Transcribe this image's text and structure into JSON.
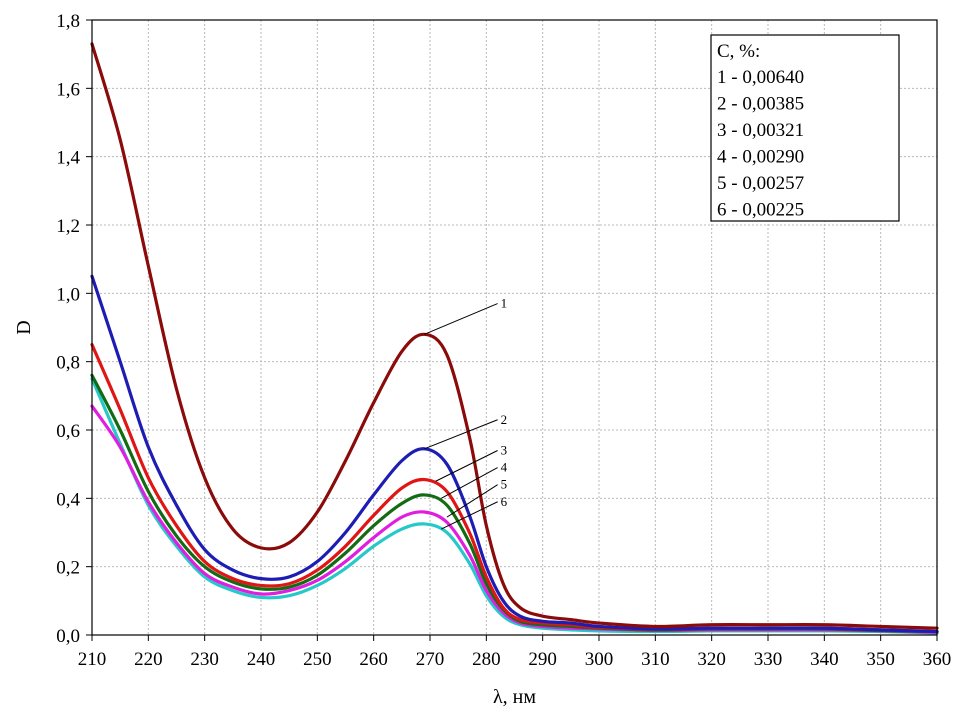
{
  "chart_data": {
    "type": "line",
    "title": "",
    "xlabel": "λ, нм",
    "ylabel": "D",
    "xlim": [
      210,
      360
    ],
    "ylim": [
      0,
      1.8
    ],
    "xticks": [
      210,
      220,
      230,
      240,
      250,
      260,
      270,
      280,
      290,
      300,
      310,
      320,
      330,
      340,
      350,
      360
    ],
    "xtick_labels": [
      "210",
      "220",
      "230",
      "240",
      "250",
      "260",
      "270",
      "280",
      "290",
      "300",
      "310",
      "320",
      "330",
      "340",
      "350",
      "360"
    ],
    "yticks": [
      0,
      0.2,
      0.4,
      0.6,
      0.8,
      1.0,
      1.2,
      1.4,
      1.6,
      1.8
    ],
    "ytick_labels": [
      "0,0",
      "0,2",
      "0,4",
      "0,6",
      "0,8",
      "1,0",
      "1,2",
      "1,4",
      "1,6",
      "1,8"
    ],
    "grid": true,
    "legend": {
      "position": "top-right",
      "title": "C, %:",
      "entries": [
        "1 - 0,00640",
        "2 - 0,00385",
        "3 - 0,00321",
        "4 - 0,00290",
        "5 - 0,00257",
        "6 - 0,00225"
      ]
    },
    "x": [
      210,
      215,
      220,
      225,
      230,
      235,
      240,
      245,
      250,
      255,
      260,
      265,
      269,
      273,
      277,
      280,
      283,
      286,
      290,
      295,
      300,
      310,
      320,
      330,
      340,
      350,
      360
    ],
    "series": [
      {
        "name": "1",
        "label": "1",
        "color": "#8b0a0a",
        "values": [
          1.73,
          1.45,
          1.08,
          0.72,
          0.46,
          0.31,
          0.255,
          0.27,
          0.36,
          0.51,
          0.68,
          0.83,
          0.88,
          0.82,
          0.58,
          0.32,
          0.15,
          0.08,
          0.055,
          0.045,
          0.035,
          0.025,
          0.03,
          0.03,
          0.03,
          0.025,
          0.02
        ]
      },
      {
        "name": "2",
        "label": "2",
        "color": "#1d1db3",
        "values": [
          1.05,
          0.8,
          0.55,
          0.38,
          0.25,
          0.19,
          0.165,
          0.17,
          0.215,
          0.3,
          0.41,
          0.51,
          0.545,
          0.5,
          0.35,
          0.2,
          0.1,
          0.055,
          0.04,
          0.035,
          0.025,
          0.018,
          0.02,
          0.02,
          0.02,
          0.015,
          0.01
        ]
      },
      {
        "name": "3",
        "label": "3",
        "color": "#e01515",
        "values": [
          0.85,
          0.66,
          0.46,
          0.32,
          0.215,
          0.165,
          0.145,
          0.15,
          0.19,
          0.26,
          0.35,
          0.43,
          0.455,
          0.42,
          0.3,
          0.17,
          0.08,
          0.045,
          0.035,
          0.03,
          0.022,
          0.018,
          0.02,
          0.02,
          0.02,
          0.015,
          0.01
        ]
      },
      {
        "name": "4",
        "label": "4",
        "color": "#136b13",
        "values": [
          0.76,
          0.6,
          0.42,
          0.29,
          0.2,
          0.155,
          0.135,
          0.14,
          0.175,
          0.24,
          0.32,
          0.385,
          0.41,
          0.38,
          0.27,
          0.15,
          0.075,
          0.04,
          0.03,
          0.025,
          0.02,
          0.015,
          0.018,
          0.018,
          0.018,
          0.013,
          0.01
        ]
      },
      {
        "name": "5",
        "label": "5",
        "color": "#e01ee0",
        "values": [
          0.67,
          0.55,
          0.39,
          0.27,
          0.18,
          0.14,
          0.12,
          0.13,
          0.16,
          0.215,
          0.285,
          0.345,
          0.36,
          0.33,
          0.235,
          0.13,
          0.065,
          0.035,
          0.025,
          0.02,
          0.018,
          0.013,
          0.015,
          0.015,
          0.015,
          0.012,
          0.008
        ]
      },
      {
        "name": "6",
        "label": "6",
        "color": "#26c8c8",
        "values": [
          0.75,
          0.56,
          0.38,
          0.26,
          0.17,
          0.13,
          0.11,
          0.115,
          0.145,
          0.195,
          0.26,
          0.31,
          0.325,
          0.3,
          0.21,
          0.115,
          0.055,
          0.03,
          0.02,
          0.015,
          0.012,
          0.01,
          0.012,
          0.012,
          0.012,
          0.01,
          0.006
        ]
      }
    ],
    "callouts": [
      {
        "series": "1",
        "at_x": 269,
        "at_y": 0.88,
        "label_x": 282,
        "label_y": 0.97
      },
      {
        "series": "2",
        "at_x": 269,
        "at_y": 0.545,
        "label_x": 282,
        "label_y": 0.63
      },
      {
        "series": "3",
        "at_x": 271,
        "at_y": 0.45,
        "label_x": 282,
        "label_y": 0.54
      },
      {
        "series": "4",
        "at_x": 272,
        "at_y": 0.4,
        "label_x": 282,
        "label_y": 0.49
      },
      {
        "series": "5",
        "at_x": 273,
        "at_y": 0.345,
        "label_x": 282,
        "label_y": 0.44
      },
      {
        "series": "6",
        "at_x": 272,
        "at_y": 0.31,
        "label_x": 282,
        "label_y": 0.39
      }
    ]
  }
}
